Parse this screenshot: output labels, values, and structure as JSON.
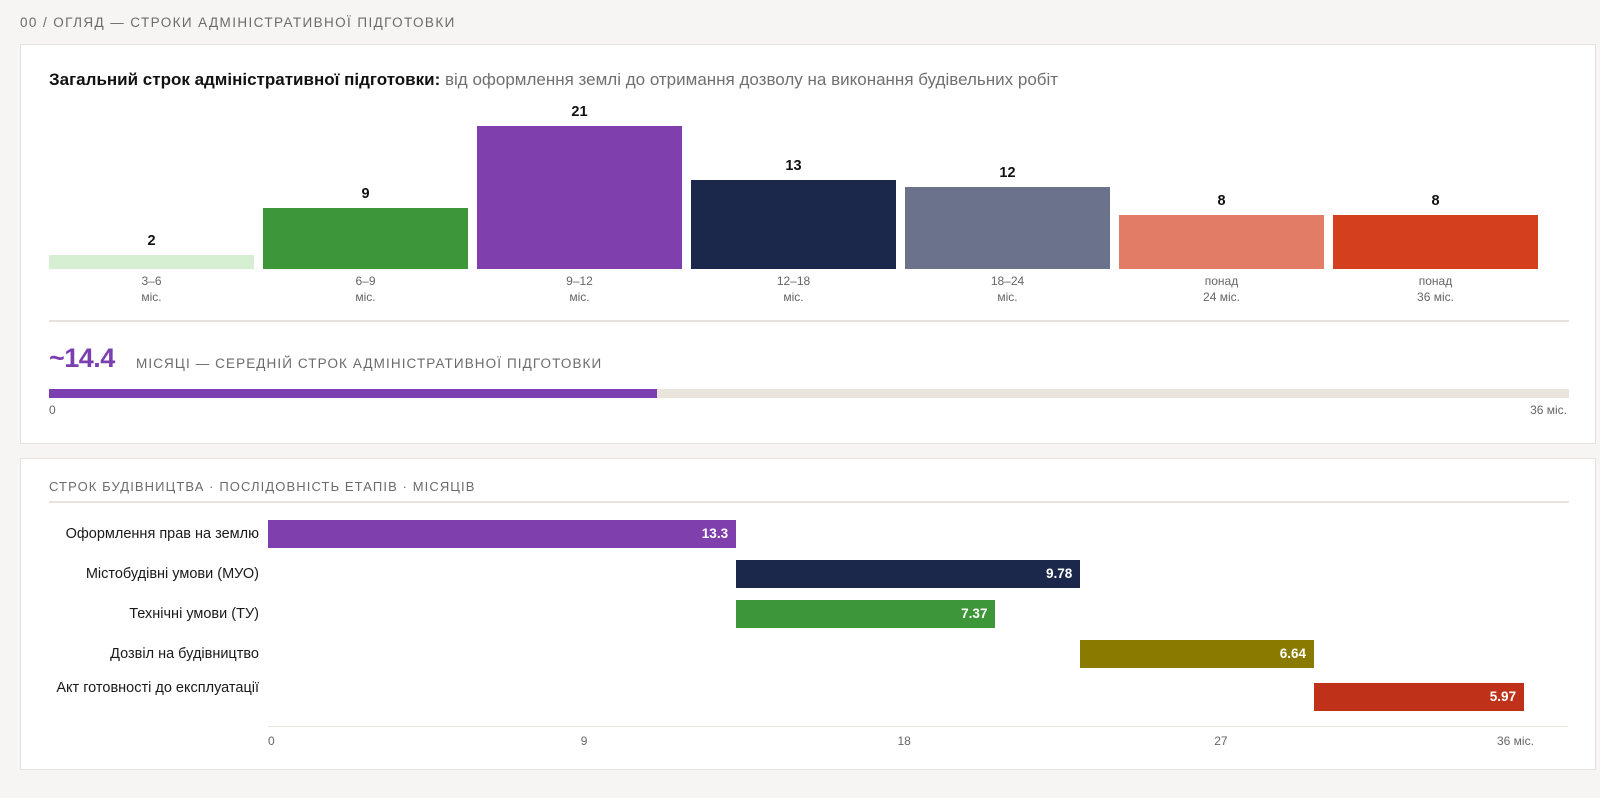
{
  "header": {
    "section_label": "00 / ОГЛЯД — СТРОКИ АДМІНІСТРАТИВНОЇ ПІДГОТОВКИ"
  },
  "histogram": {
    "title_bold": "Загальний строк адміністративної підготовки:",
    "title_rest": " від оформлення землі до отримання дозволу на виконання будівельних робіт"
  },
  "average": {
    "value": "~14.4",
    "value_number": 14.4,
    "max_number": 36,
    "label": "МІСЯЦІ — СЕРЕДНІЙ СТРОК АДМІНІСТРАТИВНОЇ ПІДГОТОВКИ",
    "min_label": "0",
    "max_label": "36 міс.",
    "fill_color": "#7b3fb0"
  },
  "gantt": {
    "title": "СТРОК БУДІВНИЦТВА · ПОСЛІДОВНІСТЬ ЕТАПІВ · МІСЯЦІВ"
  },
  "chart_data": [
    {
      "type": "bar",
      "title": "Загальний строк адміністративної підготовки: від оформлення землі до отримання дозволу на виконання будівельних робіт",
      "categories": [
        [
          "3–6",
          "міс."
        ],
        [
          "6–9",
          "міс."
        ],
        [
          "9–12",
          "міс."
        ],
        [
          "12–18",
          "міс."
        ],
        [
          "18–24",
          "міс."
        ],
        [
          "понад",
          "24 міс."
        ],
        [
          "понад",
          "36 міс."
        ]
      ],
      "values": [
        2,
        9,
        21,
        13,
        12,
        8,
        8
      ],
      "colors": [
        "#d6efd2",
        "#3d9637",
        "#7f40ae",
        "#1c274c",
        "#6b728b",
        "#e37c66",
        "#d4401e"
      ],
      "ylim": [
        0,
        21
      ]
    },
    {
      "type": "bar",
      "orientation": "horizontal-gantt",
      "title": "СТРОК БУДІВНИЦТВА · ПОСЛІДОВНІСТЬ ЕТАПІВ · МІСЯЦІВ",
      "tasks": [
        {
          "label": "Оформлення прав на землю",
          "start": 0,
          "duration": 13.3,
          "color": "#7f40ae"
        },
        {
          "label": "Містобудівні умови (МУО)",
          "start": 13.3,
          "duration": 9.78,
          "color": "#1c274c"
        },
        {
          "label": "Технічні умови (ТУ)",
          "start": 13.3,
          "duration": 7.37,
          "color": "#3d9637"
        },
        {
          "label": "Дозвіл на будівництво",
          "start": 23.08,
          "duration": 6.64,
          "color": "#8a7a00"
        },
        {
          "label": "Акт готовності до експлуатації",
          "start": 29.72,
          "duration": 5.97,
          "color": "#c0311a"
        }
      ],
      "xlim": [
        0,
        36
      ],
      "xticks": [
        "0",
        "9",
        "18",
        "27",
        "36 міс."
      ]
    }
  ]
}
